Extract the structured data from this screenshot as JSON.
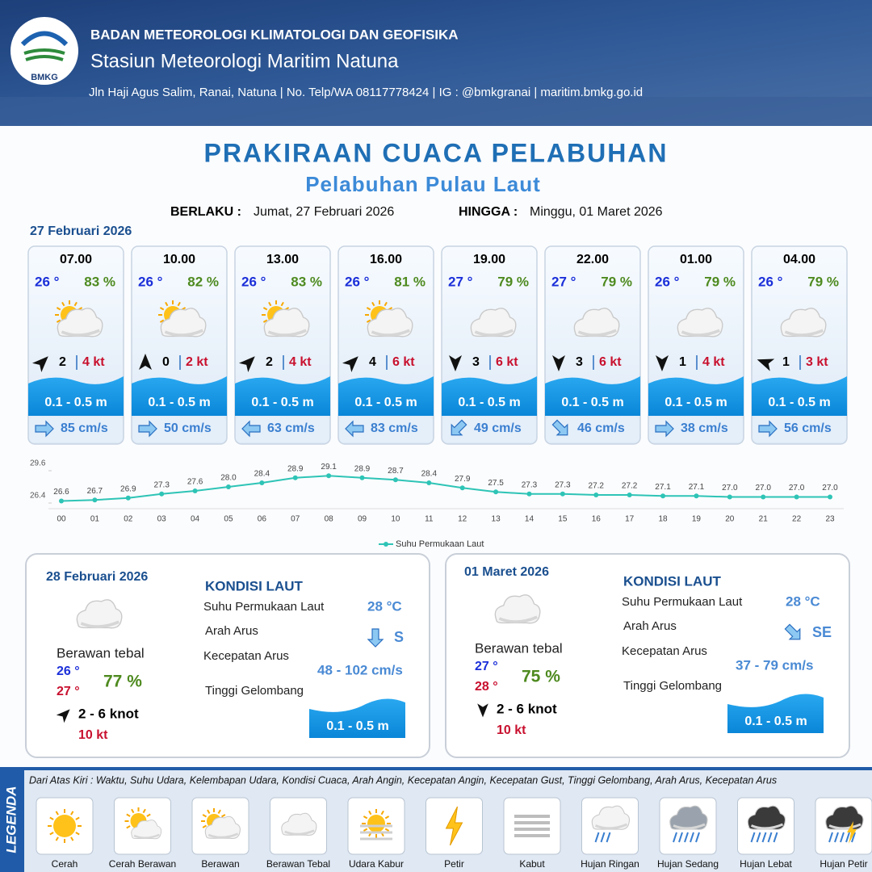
{
  "header": {
    "agency": "BADAN METEOROLOGI KLIMATOLOGI DAN GEOFISIKA",
    "station": "Stasiun Meteorologi Maritim Natuna",
    "contact": "Jln Haji Agus Salim, Ranai, Natuna  | No. Telp/WA 08117778424 | IG : @bmkgranai | maritim.bmkg.go.id",
    "logo": "BMKG"
  },
  "title": "PRAKIRAAN CUACA PELABUHAN",
  "subtitle": "Pelabuhan Pulau Laut",
  "validity": {
    "from_label": "BERLAKU :",
    "from": "Jumat, 27 Februari 2026",
    "to_label": "HINGGA :",
    "to": "Minggu, 01 Maret 2026"
  },
  "day1": {
    "date": "27 Februari 2026",
    "cards": [
      {
        "time": "07.00",
        "temp": "26 °",
        "humidity": "83 %",
        "wind": "2",
        "gust": "4 kt",
        "wave": "0.1 - 0.5 m",
        "current": "85 cm/s"
      },
      {
        "time": "10.00",
        "temp": "26 °",
        "humidity": "82 %",
        "wind": "0",
        "gust": "2 kt",
        "wave": "0.1 - 0.5 m",
        "current": "50 cm/s"
      },
      {
        "time": "13.00",
        "temp": "26 °",
        "humidity": "83 %",
        "wind": "2",
        "gust": "4 kt",
        "wave": "0.1 - 0.5 m",
        "current": "63 cm/s"
      },
      {
        "time": "16.00",
        "temp": "26 °",
        "humidity": "81 %",
        "wind": "4",
        "gust": "6 kt",
        "wave": "0.1 - 0.5 m",
        "current": "83 cm/s"
      },
      {
        "time": "19.00",
        "temp": "27 °",
        "humidity": "79 %",
        "wind": "3",
        "gust": "6 kt",
        "wave": "0.1 - 0.5 m",
        "current": "49 cm/s"
      },
      {
        "time": "22.00",
        "temp": "27 °",
        "humidity": "79 %",
        "wind": "3",
        "gust": "6 kt",
        "wave": "0.1 - 0.5 m",
        "current": "46 cm/s"
      },
      {
        "time": "01.00",
        "temp": "26 °",
        "humidity": "79 %",
        "wind": "1",
        "gust": "4 kt",
        "wave": "0.1 - 0.5 m",
        "current": "38 cm/s"
      },
      {
        "time": "04.00",
        "temp": "26 °",
        "humidity": "79 %",
        "wind": "1",
        "gust": "3 kt",
        "wave": "0.1 - 0.5 m",
        "current": "56 cm/s"
      }
    ]
  },
  "chart_data": {
    "type": "line",
    "categories": [
      "00",
      "01",
      "02",
      "03",
      "04",
      "05",
      "06",
      "07",
      "08",
      "09",
      "10",
      "11",
      "12",
      "13",
      "14",
      "15",
      "16",
      "17",
      "18",
      "19",
      "20",
      "21",
      "22",
      "23"
    ],
    "series": [
      {
        "name": "Suhu Permukaan Laut",
        "color": "#2ec4b6",
        "values": [
          26.6,
          26.7,
          26.9,
          27.3,
          27.6,
          28.0,
          28.4,
          28.9,
          29.1,
          28.9,
          28.7,
          28.4,
          27.9,
          27.5,
          27.3,
          27.3,
          27.2,
          27.2,
          27.1,
          27.1,
          27.0,
          27.0,
          27.0,
          27.0
        ],
        "value_labels": [
          "26.6",
          "26.7",
          "26.9",
          "27.3",
          "27.6",
          "28.0",
          "28.4",
          "28.9",
          "29.1",
          "28.9",
          "28.7",
          "28.4",
          "27.9",
          "27.5",
          "27.3",
          "27.3",
          "27.2",
          "27.2",
          "27.1",
          "27.1",
          "27.0",
          "27.0",
          "27.0",
          "27.0"
        ]
      }
    ],
    "ylim": [
      26.4,
      29.6
    ],
    "yticks": [
      26.4,
      29.6
    ],
    "grid": false,
    "legend": "bottom"
  },
  "panels": [
    {
      "date": "28 Februari 2026",
      "condition": "Berawan tebal",
      "temp_min": "26 °",
      "temp_max": "27 °",
      "humidity": "77 %",
      "wind": "2  - 6 knot",
      "gust": "10 kt",
      "sea_heading": "KONDISI LAUT",
      "sst_label": "Suhu Permukaan Laut",
      "sst": "28 °C",
      "current_dir_label": "Arah Arus",
      "current_dir": "S",
      "current_speed_label": "Kecepatan Arus",
      "current_speed": "48 - 102 cm/s",
      "wave_label": "Tinggi Gelombang",
      "wave": "0.1 - 0.5 m"
    },
    {
      "date": "01 Maret 2026",
      "condition": "Berawan tebal",
      "temp_min": "27 °",
      "temp_max": "28 °",
      "humidity": "75 %",
      "wind": "2  - 6 knot",
      "gust": "10 kt",
      "sea_heading": "KONDISI LAUT",
      "sst_label": "Suhu Permukaan Laut",
      "sst": "28 °C",
      "current_dir_label": "Arah Arus",
      "current_dir": "SE",
      "current_speed_label": "Kecepatan Arus",
      "current_speed": "37 - 79 cm/s",
      "wave_label": "Tinggi Gelombang",
      "wave": "0.1 - 0.5 m"
    }
  ],
  "legend": {
    "title": "LEGENDA",
    "description": "Dari Atas Kiri : Waktu, Suhu Udara, Kelembapan Udara, Kondisi Cuaca, Arah Angin, Kecepatan Angin, Kecepatan Gust, Tinggi Gelombang, Arah Arus, Kecepatan Arus",
    "items": [
      "Cerah",
      "Cerah Berawan",
      "Berawan",
      "Berawan Tebal",
      "Udara Kabur",
      "Petir",
      "Kabut",
      "Hujan Ringan",
      "Hujan Sedang",
      "Hujan Lebat",
      "Hujan Petir"
    ]
  }
}
